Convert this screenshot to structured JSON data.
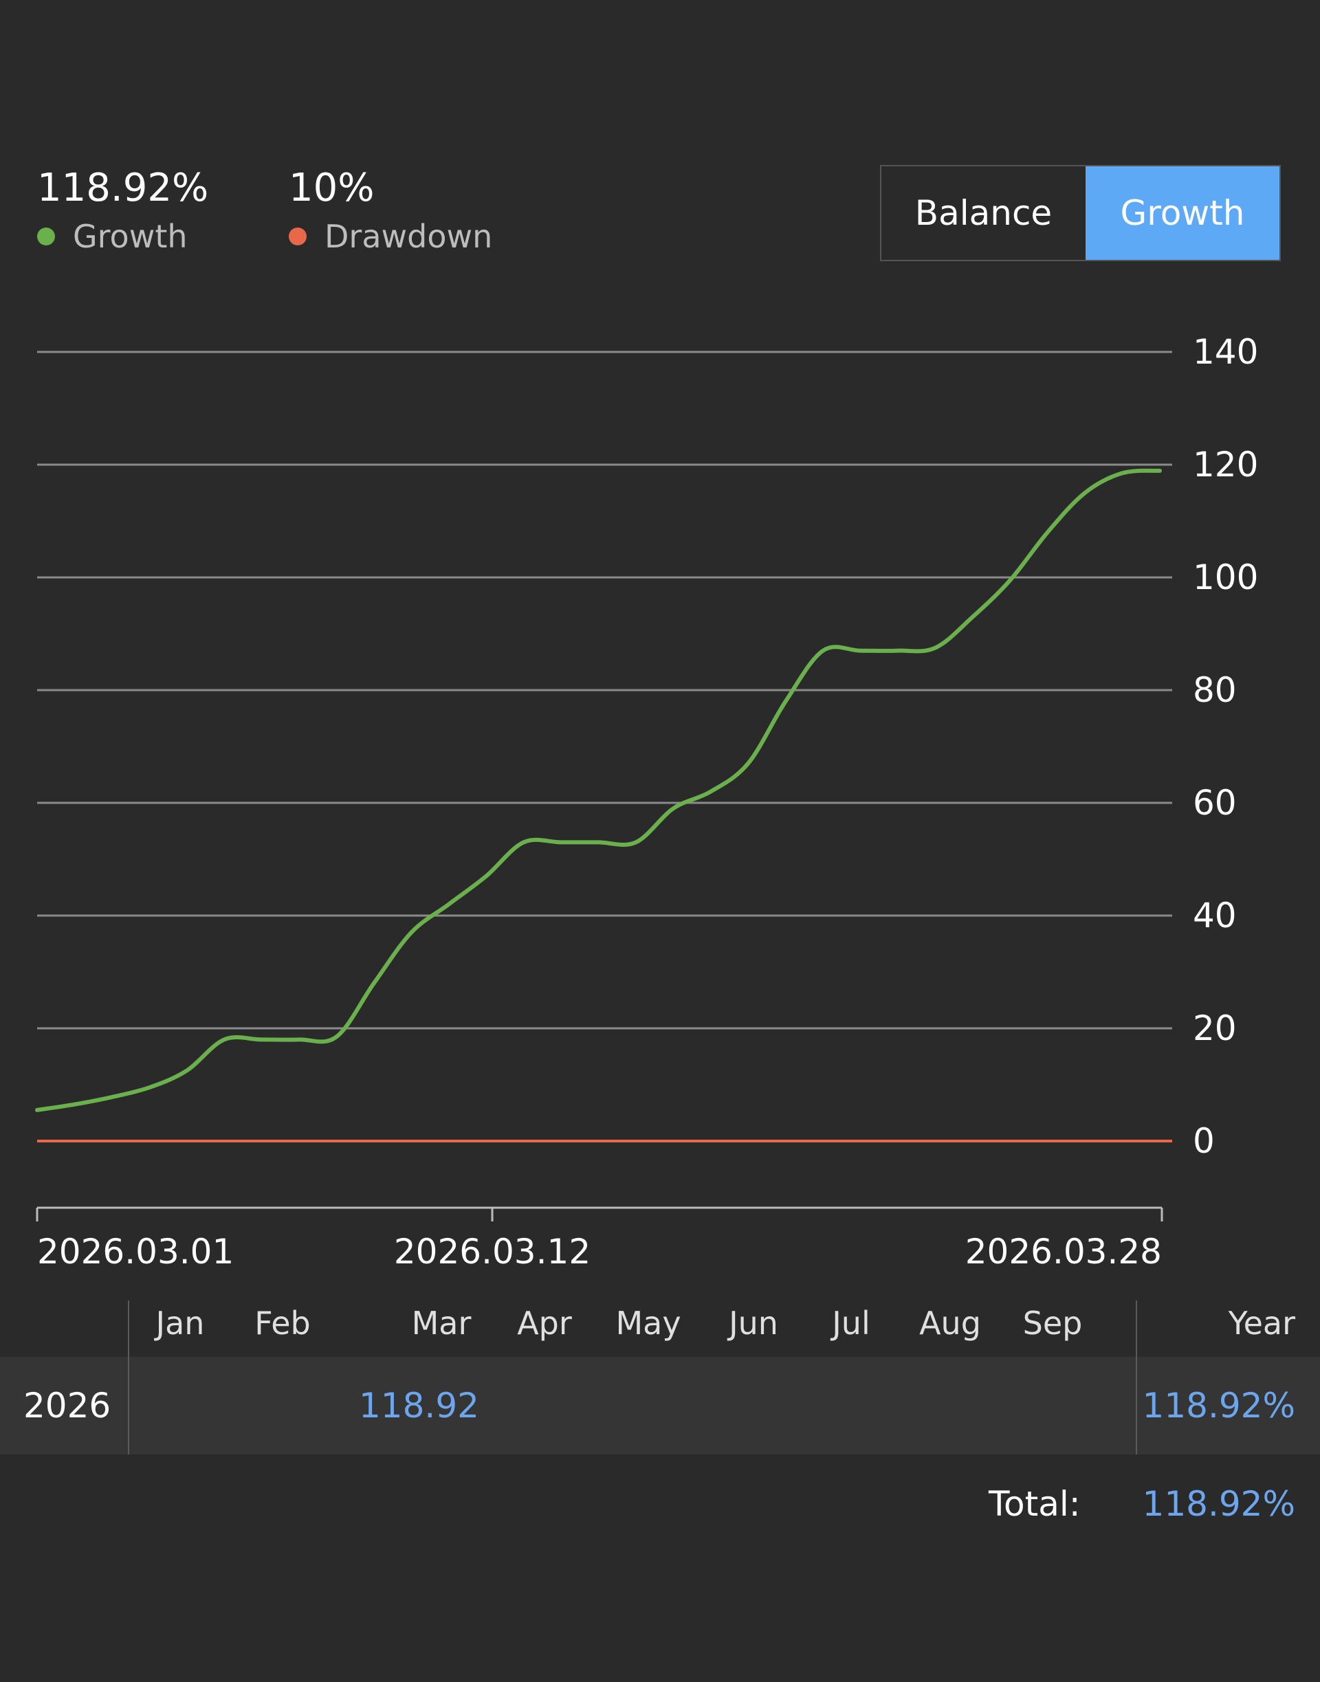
{
  "stats": {
    "growth_value": "118.92%",
    "growth_label": "Growth",
    "drawdown_value": "10%",
    "drawdown_label": "Drawdown"
  },
  "colors": {
    "growth": "#6ab04c",
    "drawdown": "#e8684a",
    "accent": "#5ea9f6",
    "link": "#6ea6ee",
    "grid": "#8a8a8a"
  },
  "toggle": {
    "balance_label": "Balance",
    "growth_label": "Growth",
    "active": "Growth"
  },
  "chart_data": {
    "type": "line",
    "y_ticks": [
      0,
      20,
      40,
      60,
      80,
      100,
      120,
      140
    ],
    "ylim": [
      0,
      140
    ],
    "y_axis_position": "right",
    "grid": true,
    "x_tick_labels": [
      "2026.03.01",
      "2026.03.12",
      "2026.03.28"
    ],
    "series": [
      {
        "name": "Growth",
        "color": "#6ab04c",
        "values": [
          5.5,
          6.5,
          7.8,
          9.5,
          12.5,
          18,
          18,
          18,
          18.5,
          28,
          37,
          42,
          47,
          53,
          53,
          53,
          53,
          59,
          62,
          67,
          78,
          87,
          87,
          87,
          87.5,
          93,
          99.5,
          108,
          115,
          118.5,
          118.92
        ]
      },
      {
        "name": "Drawdown",
        "color": "#e8684a",
        "values": [
          0,
          0
        ]
      }
    ]
  },
  "table": {
    "months": [
      "Jan",
      "Feb",
      "Mar",
      "Apr",
      "May",
      "Jun",
      "Jul",
      "Aug",
      "Sep"
    ],
    "year_header": "Year",
    "rows": [
      {
        "year": "2026",
        "mar": "118.92",
        "year_total": "118.92%"
      }
    ],
    "total_label": "Total:",
    "total_value": "118.92%"
  }
}
